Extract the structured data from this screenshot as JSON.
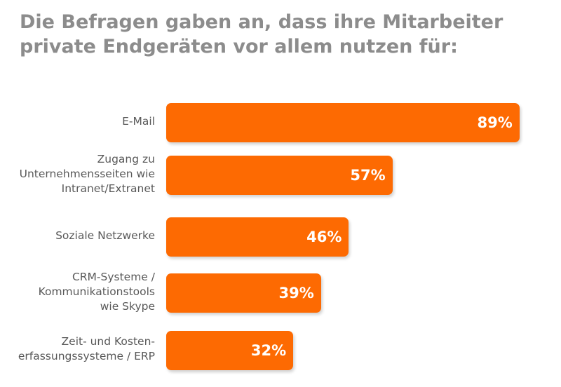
{
  "title": "Die Befragen gaben an, dass ihre Mitarbeiter private Endgeräten vor allem nutzen für:",
  "colors": {
    "bar": "#fd6a02",
    "title": "#8c8c8c",
    "label": "#595959",
    "value_text": "#ffffff"
  },
  "chart_data": {
    "type": "bar",
    "orientation": "horizontal",
    "unit": "%",
    "xlim": [
      0,
      100
    ],
    "grid": false,
    "categories": [
      "E-Mail",
      "Zugang zu\nUnternehmensseiten wie\nIntranet/Extranet",
      "Soziale Netzwerke",
      "CRM-Systeme /\nKommunikationstools\nwie Skype",
      "Zeit- und Kosten-\nerfassungssysteme / ERP"
    ],
    "values": [
      89,
      57,
      46,
      39,
      32
    ],
    "value_labels": [
      "89%",
      "57%",
      "46%",
      "39%",
      "32%"
    ]
  }
}
